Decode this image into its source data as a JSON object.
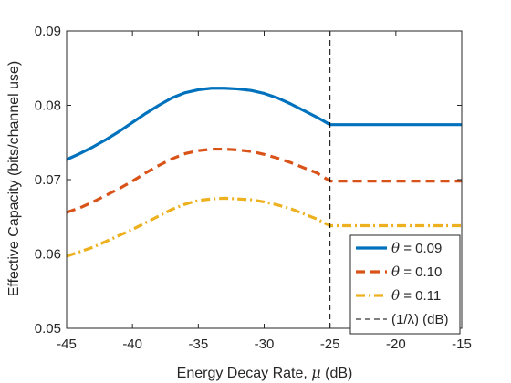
{
  "chart_data": {
    "type": "line",
    "xlabel_prefix": "Energy Decay Rate, ",
    "xlabel_symbol": "μ",
    "xlabel_suffix": " (dB)",
    "ylabel": "Effective Capacity (bits/channel use)",
    "xlim": [
      -45,
      -15
    ],
    "ylim": [
      0.05,
      0.09
    ],
    "xticks": [
      -45,
      -40,
      -35,
      -30,
      -25,
      -20,
      -15
    ],
    "xtick_labels": [
      "-45",
      "-40",
      "-35",
      "-30",
      "-25",
      "-20",
      "-15"
    ],
    "yticks": [
      0.05,
      0.06,
      0.07,
      0.08,
      0.09
    ],
    "ytick_labels": [
      "0.05",
      "0.06",
      "0.07",
      "0.08",
      "0.09"
    ],
    "grid": false,
    "legend_position": "bottom-right",
    "x": [
      -45,
      -44,
      -43,
      -42,
      -41,
      -40,
      -39,
      -38,
      -37,
      -36,
      -35,
      -34,
      -33,
      -32,
      -31,
      -30,
      -29,
      -28,
      -27,
      -26,
      -25,
      -24,
      -20,
      -15
    ],
    "series": [
      {
        "symbol": "θ",
        "value_text": " = 0.09",
        "color": "#0072BD",
        "style": "solid",
        "values": [
          0.0727,
          0.0735,
          0.0744,
          0.0754,
          0.0765,
          0.0777,
          0.0789,
          0.08,
          0.081,
          0.0817,
          0.0821,
          0.0823,
          0.0823,
          0.0822,
          0.082,
          0.0816,
          0.081,
          0.0802,
          0.0793,
          0.0784,
          0.0774,
          0.0774,
          0.0774,
          0.0774
        ]
      },
      {
        "symbol": "θ",
        "value_text": " = 0.10",
        "color": "#D95319",
        "style": "dashed",
        "values": [
          0.0656,
          0.0662,
          0.067,
          0.0679,
          0.0688,
          0.0698,
          0.0709,
          0.0719,
          0.0728,
          0.0735,
          0.0739,
          0.0741,
          0.0741,
          0.074,
          0.0738,
          0.0734,
          0.0729,
          0.0723,
          0.0716,
          0.0709,
          0.0698,
          0.0698,
          0.0698,
          0.0698
        ]
      },
      {
        "symbol": "θ",
        "value_text": " = 0.11",
        "color": "#EDB120",
        "style": "dashdot",
        "values": [
          0.0597,
          0.0603,
          0.0609,
          0.0617,
          0.0625,
          0.0633,
          0.0642,
          0.0651,
          0.066,
          0.0667,
          0.0672,
          0.0674,
          0.0675,
          0.0674,
          0.0673,
          0.067,
          0.0666,
          0.0661,
          0.0654,
          0.0647,
          0.0638,
          0.0638,
          0.0638,
          0.0638
        ]
      }
    ],
    "vline": {
      "x": -25,
      "label": "(1/λ) (dB)",
      "color": "#000000",
      "style": "dashed"
    }
  }
}
